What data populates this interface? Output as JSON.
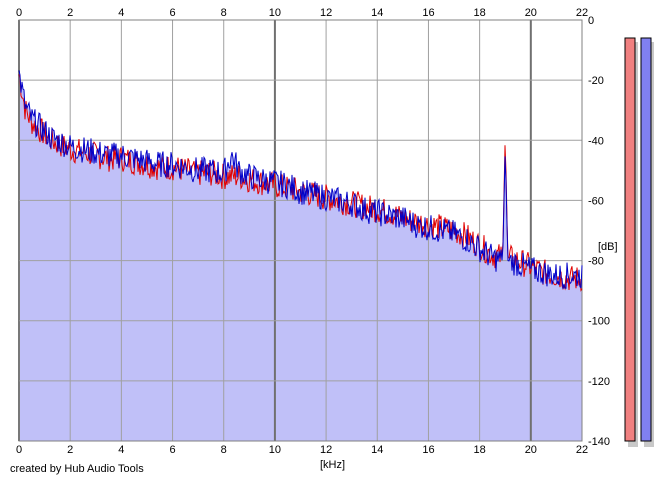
{
  "credit": "created by Hub Audio Tools",
  "colors": {
    "background": "#ffffff",
    "fill": "#c0c0f8",
    "grid": "#a0a0a0",
    "major_grid": "#707070",
    "left_channel": "#e00000",
    "right_channel": "#0000c8",
    "left_meter": "#f08080",
    "right_meter": "#8080f0",
    "meter_shadow": "#c8c8c8"
  },
  "chart_data": {
    "type": "line",
    "xlabel": "[kHz]",
    "ylabel": "[dB]",
    "xlim": [
      0,
      22
    ],
    "ylim": [
      -140,
      0
    ],
    "x_ticks": [
      "0",
      "2",
      "4",
      "6",
      "8",
      "10",
      "12",
      "14",
      "16",
      "18",
      "20",
      "22"
    ],
    "y_ticks": [
      "0",
      "-20",
      "-40",
      "-60",
      "-80",
      "-100",
      "-120",
      "-140"
    ],
    "grid": true,
    "filled_area_under_curve": true,
    "x": [
      0.0,
      0.25,
      0.5,
      0.75,
      1.0,
      1.25,
      1.5,
      1.75,
      2.0,
      2.5,
      3.0,
      3.5,
      4.0,
      4.5,
      5.0,
      5.5,
      6.0,
      6.5,
      7.0,
      7.5,
      8.0,
      8.3,
      8.6,
      9.0,
      9.5,
      10.0,
      10.5,
      11.0,
      11.5,
      12.0,
      12.5,
      13.0,
      13.5,
      14.0,
      14.5,
      15.0,
      15.5,
      16.0,
      16.5,
      17.0,
      17.5,
      18.0,
      18.5,
      18.9,
      19.0,
      19.1,
      19.5,
      20.0,
      20.5,
      21.0,
      21.5,
      22.0
    ],
    "series": [
      {
        "values": [
          -18,
          -30,
          -34,
          -36,
          -38,
          -40,
          -41,
          -42,
          -43,
          -44,
          -45,
          -46,
          -46,
          -47,
          -48,
          -49,
          -49,
          -50,
          -51,
          -51,
          -52,
          -52,
          -52,
          -53,
          -54,
          -55,
          -56,
          -57,
          -58,
          -59,
          -60,
          -61,
          -62,
          -63,
          -64,
          -66,
          -67,
          -68,
          -69,
          -70,
          -72,
          -75,
          -78,
          -79,
          -38,
          -79,
          -80,
          -82,
          -84,
          -85,
          -86,
          -86
        ]
      },
      {
        "values": [
          -18,
          -29,
          -33,
          -35,
          -37,
          -39,
          -40,
          -41,
          -42,
          -43,
          -44,
          -45,
          -45,
          -46,
          -47,
          -48,
          -48,
          -49,
          -50,
          -50,
          -51,
          -45,
          -50,
          -52,
          -53,
          -54,
          -55,
          -57,
          -58,
          -59,
          -60,
          -61,
          -63,
          -64,
          -65,
          -66,
          -68,
          -69,
          -70,
          -71,
          -73,
          -76,
          -79,
          -80,
          -42,
          -80,
          -81,
          -83,
          -84,
          -85,
          -85,
          -85
        ]
      }
    ]
  },
  "meters": {
    "left_level": -140,
    "right_level": -140
  }
}
